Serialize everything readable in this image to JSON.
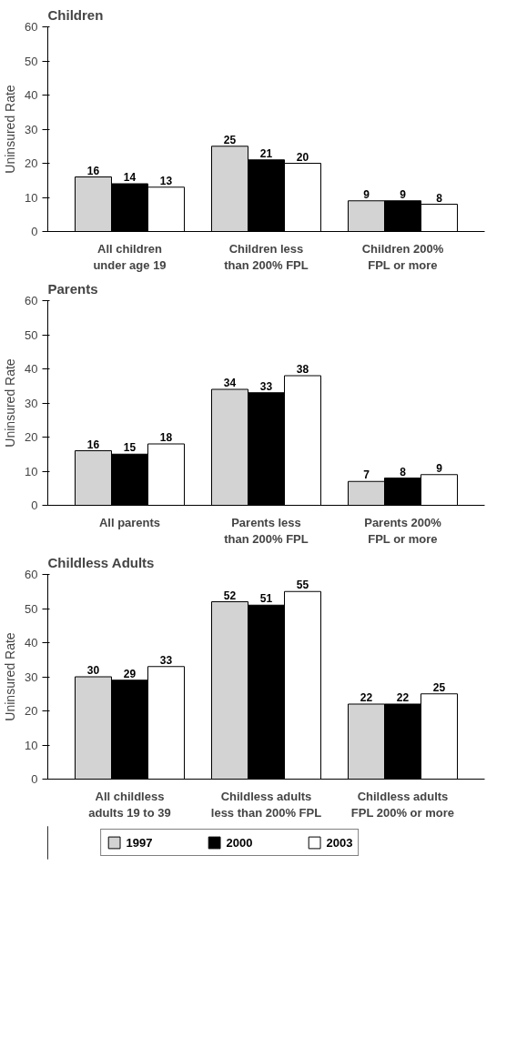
{
  "chart_data": [
    {
      "type": "bar",
      "title": "Children",
      "ylabel": "Uninsured Rate",
      "categories": [
        "All children under age 19",
        "Children less than 200% FPL",
        "Children 200% FPL or more"
      ],
      "ylim": [
        0,
        60
      ],
      "yticks": [
        0,
        10,
        20,
        30,
        40,
        50,
        60
      ],
      "data_labels": true,
      "grid": false,
      "legend": false,
      "series": [
        {
          "color": "#d3d3d3",
          "values": [
            16,
            25,
            9
          ]
        },
        {
          "color": "#000000",
          "values": [
            14,
            21,
            9
          ]
        },
        {
          "color": "#ffffff",
          "values": [
            13,
            20,
            8
          ]
        }
      ]
    },
    {
      "type": "bar",
      "title": "Parents",
      "ylabel": "Uninsured Rate",
      "categories": [
        "All parents",
        "Parents less than 200% FPL",
        "Parents 200% FPL or more"
      ],
      "ylim": [
        0,
        60
      ],
      "yticks": [
        0,
        10,
        20,
        30,
        40,
        50,
        60
      ],
      "data_labels": true,
      "grid": false,
      "legend": false,
      "series": [
        {
          "color": "#d3d3d3",
          "values": [
            16,
            34,
            7
          ]
        },
        {
          "color": "#000000",
          "values": [
            15,
            33,
            8
          ]
        },
        {
          "color": "#ffffff",
          "values": [
            18,
            38,
            9
          ]
        }
      ]
    },
    {
      "type": "bar",
      "title": "Childless Adults",
      "ylabel": "Uninsured Rate",
      "categories": [
        "All childless adults 19 to 39",
        "Childless adults less than 200% FPL",
        "Childless adults FPL 200% or more"
      ],
      "ylim": [
        0,
        60
      ],
      "yticks": [
        0,
        10,
        20,
        30,
        40,
        50,
        60
      ],
      "data_labels": true,
      "grid": false,
      "legend": "bottom",
      "series": [
        {
          "name": "1997",
          "color": "#d3d3d3",
          "values": [
            30,
            52,
            22
          ]
        },
        {
          "name": "2000",
          "color": "#000000",
          "values": [
            29,
            51,
            22
          ]
        },
        {
          "name": "2003",
          "color": "#ffffff",
          "values": [
            33,
            55,
            25
          ]
        }
      ]
    }
  ]
}
